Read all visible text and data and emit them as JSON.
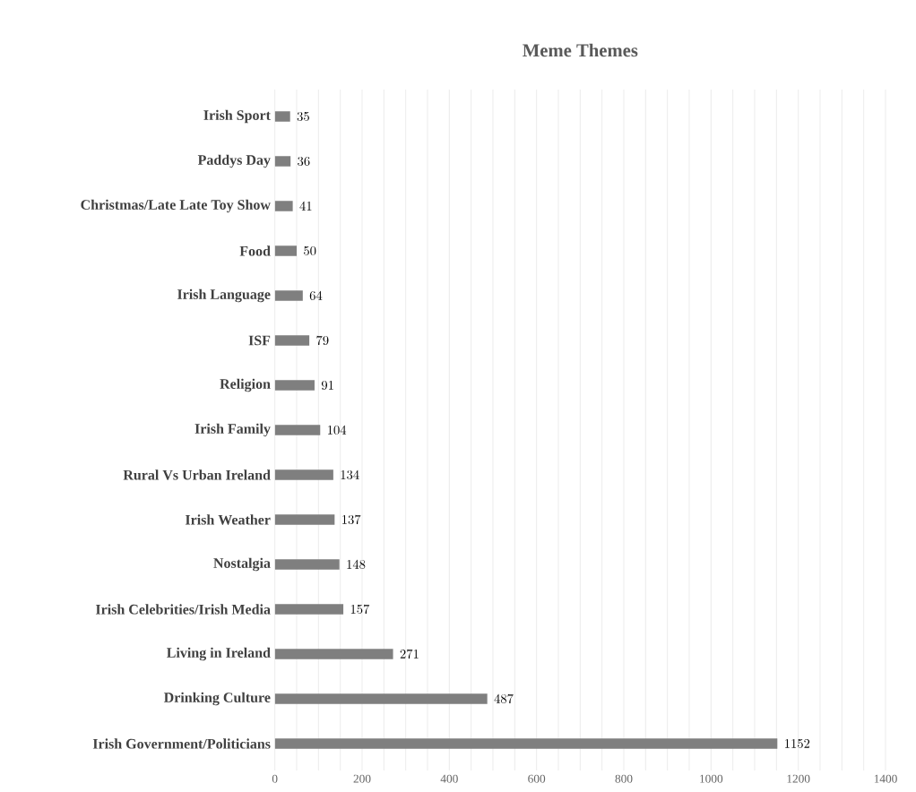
{
  "chart_data": {
    "type": "bar",
    "orientation": "horizontal",
    "title": "Meme Themes",
    "categories": [
      "Irish Sport",
      "Paddys Day",
      "Christmas/Late Late Toy Show",
      "Food",
      "Irish Language",
      "ISF",
      "Religion",
      "Irish Family",
      "Rural Vs Urban Ireland",
      "Irish Weather",
      "Nostalgia",
      "Irish Celebrities/Irish Media",
      "Living in Ireland",
      "Drinking Culture",
      "Irish Government/Politicians"
    ],
    "values": [
      35,
      36,
      41,
      50,
      64,
      79,
      91,
      104,
      134,
      137,
      148,
      157,
      271,
      487,
      1152
    ],
    "color": "#7f7f7f",
    "xlim": [
      0,
      1400
    ],
    "xticks": [
      0,
      {
        "value": 50,
        "label": null
      },
      {
        "value": 100,
        "label": null
      },
      {
        "value": 150,
        "label": null
      },
      200,
      {
        "value": 250,
        "label": null
      },
      {
        "value": 300,
        "label": null
      },
      {
        "value": 350,
        "label": null
      },
      400,
      {
        "value": 450,
        "label": null
      },
      {
        "value": 500,
        "label": null
      },
      {
        "value": 550,
        "label": null
      },
      600,
      {
        "value": 650,
        "label": null
      },
      {
        "value": 700,
        "label": null
      },
      {
        "value": 750,
        "label": null
      },
      800,
      {
        "value": 850,
        "label": null
      },
      {
        "value": 900,
        "label": null
      },
      {
        "value": 950,
        "label": null
      },
      1000,
      {
        "value": 1050,
        "label": null
      },
      {
        "value": 1100,
        "label": null
      },
      {
        "value": 1150,
        "label": null
      },
      1200,
      {
        "value": 1250,
        "label": null
      },
      {
        "value": 1300,
        "label": null
      },
      {
        "value": 1350,
        "label": null
      },
      1400
    ],
    "grid": "x",
    "data_labels": true
  }
}
